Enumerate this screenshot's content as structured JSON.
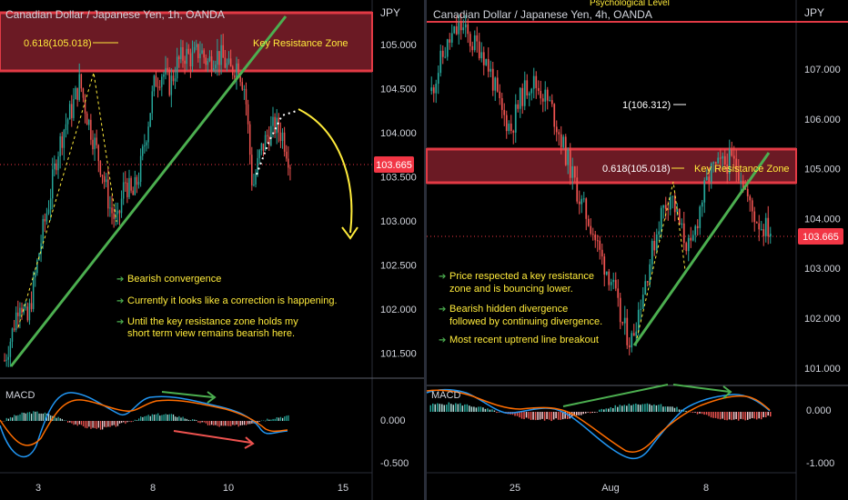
{
  "left_panel": {
    "symbol_title": "Canadian Dollar / Japanese Yen, 1h, OANDA",
    "axis_unit": "JPY",
    "price_ticks": [
      "105.000",
      "104.500",
      "104.000",
      "103.500",
      "103.000",
      "102.500",
      "102.000",
      "101.500"
    ],
    "current_price": "103.665",
    "fib_label": "0.618(105.018)",
    "zone_label": "Key Resistance Zone",
    "notes": [
      "Bearish convergence",
      "Currently it looks like a correction is happening.",
      "Until the key resistance zone holds my short term view remains bearish here."
    ],
    "macd_label": "MACD",
    "macd_ticks": [
      "0.000",
      "-0.500"
    ],
    "x_ticks": [
      "3",
      "8",
      "10",
      "15"
    ]
  },
  "right_panel": {
    "symbol_title": "Canadian Dollar / Japanese Yen, 4h, OANDA",
    "axis_unit": "JPY",
    "top_label": "Psychological Level",
    "price_ticks": [
      "107.000",
      "106.000",
      "105.000",
      "104.000",
      "103.000",
      "102.000",
      "101.000"
    ],
    "current_price": "103.665",
    "level_label": "1(106.312)",
    "fib_label": "0.618(105.018)",
    "zone_label": "Key Resistance Zone",
    "notes": [
      "Price respected a key resistance zone and is bouncing lower.",
      "Bearish hidden divergence followed by continuing divergence.",
      "Most recent uptrend line breakout"
    ],
    "macd_label": "MACD",
    "macd_ticks": [
      "0.000",
      "-1.000"
    ],
    "x_ticks": [
      "25",
      "Aug",
      "8"
    ]
  },
  "colors": {
    "background": "#000000",
    "zone_fill": "#6b1a24",
    "zone_border": "#e23a45",
    "trendline": "#4caf50",
    "bull_candle": "#26a69a",
    "bear_candle": "#ef5350",
    "annotation_yellow": "#ffeb3b",
    "macd_line": "#2196f3",
    "signal_line": "#ff6d00",
    "price_badge": "#f23645"
  },
  "chart_data": [
    {
      "type": "candlestick",
      "title": "Canadian Dollar / Japanese Yen, 1h, OANDA",
      "ylabel": "JPY",
      "ylim": [
        101.3,
        105.5
      ],
      "x_tick_labels": [
        "3",
        "8",
        "10",
        "15"
      ],
      "last_price": 103.665,
      "key_resistance_zone": [
        104.71,
        105.38
      ],
      "fib_level": 105.018,
      "close_path": [
        101.5,
        101.8,
        102.2,
        101.9,
        102.4,
        102.9,
        103.3,
        103.8,
        104.1,
        104.3,
        104.6,
        104.2,
        103.9,
        103.6,
        103.2,
        103.0,
        103.5,
        103.3,
        103.6,
        104.1,
        104.6,
        104.7,
        104.55,
        104.8,
        104.9,
        104.85,
        104.95,
        104.8,
        104.9,
        104.85,
        104.7,
        104.8,
        104.5,
        103.4,
        103.8,
        104.0,
        104.1,
        104.0,
        103.7
      ],
      "macd_ylim": [
        -0.6,
        0.4
      ]
    },
    {
      "type": "candlestick",
      "title": "Canadian Dollar / Japanese Yen, 4h, OANDA",
      "ylabel": "JPY",
      "ylim": [
        100.8,
        108.0
      ],
      "x_tick_labels": [
        "25",
        "Aug",
        "8"
      ],
      "last_price": 103.665,
      "key_resistance_zone": [
        104.75,
        105.35
      ],
      "fib_level": 105.018,
      "level_1": 106.312,
      "psychological_level": 107.6,
      "close_path": [
        106.3,
        106.9,
        107.3,
        107.5,
        107.2,
        107.1,
        106.6,
        105.9,
        105.6,
        106.2,
        106.5,
        106.3,
        106.0,
        105.4,
        104.8,
        104.2,
        103.8,
        103.2,
        102.8,
        102.0,
        101.6,
        102.4,
        103.2,
        104.0,
        104.4,
        103.7,
        103.3,
        104.2,
        104.8,
        104.9,
        105.0,
        104.8,
        104.1,
        103.8,
        103.7
      ],
      "macd_ylim": [
        -1.1,
        0.4
      ]
    }
  ]
}
